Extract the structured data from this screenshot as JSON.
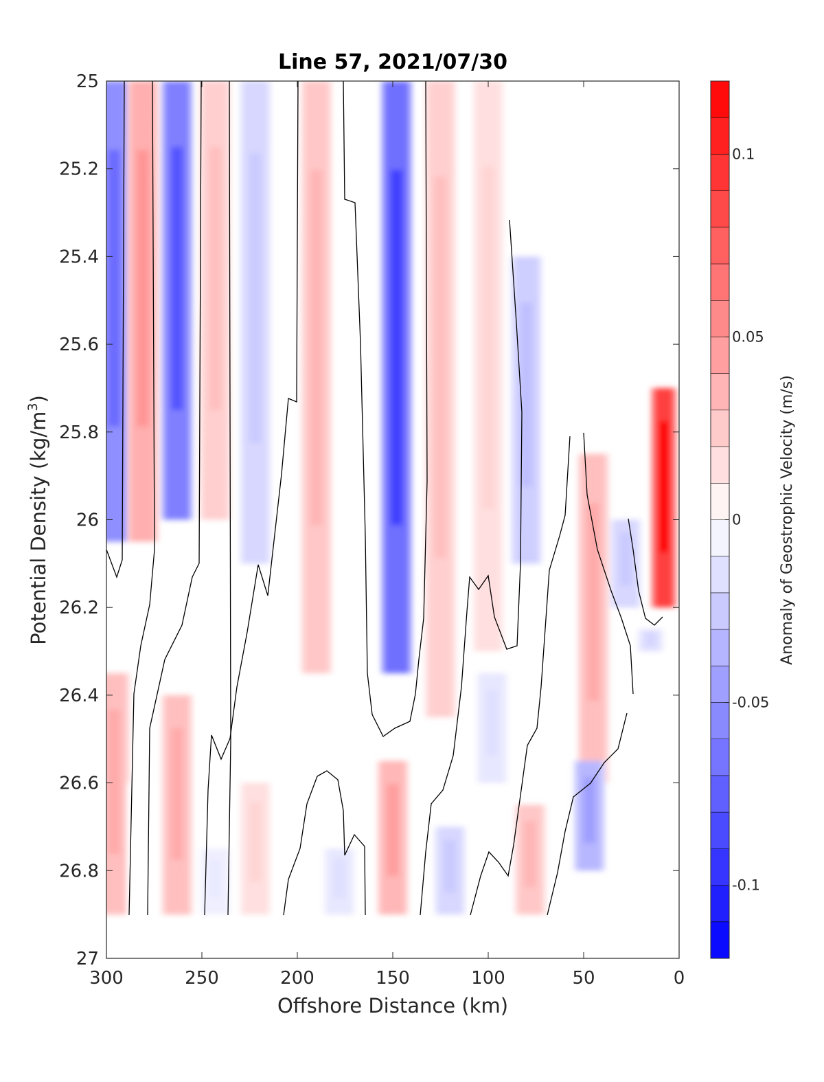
{
  "chart_data": {
    "type": "heatmap",
    "title": "Line 57, 2021/07/30",
    "xlabel": "Offshore Distance (km)",
    "ylabel_main": "Potential Density (kg/m",
    "ylabel_sup": "3",
    "ylabel_close": ")",
    "colorbar_label": "Anomaly of Geostrophic Velocity (m/s)",
    "xlim": [
      300,
      0
    ],
    "ylim": [
      25,
      27
    ],
    "x_reversed": true,
    "y_reversed": true,
    "xticks": [
      300,
      250,
      200,
      150,
      100,
      50,
      0
    ],
    "xtick_labels": [
      "300",
      "250",
      "200",
      "150",
      "100",
      "50",
      "0"
    ],
    "yticks": [
      25,
      25.2,
      25.4,
      25.6,
      25.8,
      26,
      26.2,
      26.4,
      26.6,
      26.8,
      27
    ],
    "ytick_labels": [
      "25",
      "25.2",
      "25.4",
      "25.6",
      "25.8",
      "26",
      "26.2",
      "26.4",
      "26.6",
      "26.8",
      "27"
    ],
    "clim": [
      -0.12,
      0.12
    ],
    "colorbar_ticks": [
      0.1,
      0.05,
      0,
      -0.05,
      -0.1
    ],
    "colorbar_tick_labels": [
      "0.1",
      "0.05",
      "0",
      "-0.05",
      "-0.1"
    ],
    "colormap": {
      "negative": "#0000ff",
      "zero": "#ffffff",
      "positive": "#ff0000",
      "levels": 24
    },
    "contour_level": 0,
    "contour_color": "#000000",
    "grid": false,
    "field_note": "column anomaly values (m/s) estimated from color; density range per column",
    "columns": [
      {
        "x": 296,
        "top": 25.0,
        "bottom": 26.05,
        "value": -0.07
      },
      {
        "x": 296,
        "top": 26.35,
        "bottom": 26.9,
        "value": 0.04
      },
      {
        "x": 281,
        "top": 25.0,
        "bottom": 26.05,
        "value": 0.05
      },
      {
        "x": 281,
        "top": 26.6,
        "bottom": 26.9,
        "value": 0.0
      },
      {
        "x": 263,
        "top": 25.0,
        "bottom": 26.0,
        "value": -0.08
      },
      {
        "x": 263,
        "top": 26.4,
        "bottom": 26.9,
        "value": 0.04
      },
      {
        "x": 243,
        "top": 25.0,
        "bottom": 26.0,
        "value": 0.03
      },
      {
        "x": 243,
        "top": 26.75,
        "bottom": 26.9,
        "value": -0.01
      },
      {
        "x": 222,
        "top": 25.0,
        "bottom": 26.1,
        "value": -0.025
      },
      {
        "x": 222,
        "top": 26.6,
        "bottom": 26.9,
        "value": 0.02
      },
      {
        "x": 190,
        "top": 25.0,
        "bottom": 26.35,
        "value": 0.035
      },
      {
        "x": 178,
        "top": 26.75,
        "bottom": 26.9,
        "value": -0.015
      },
      {
        "x": 148,
        "top": 25.0,
        "bottom": 26.35,
        "value": -0.09
      },
      {
        "x": 150,
        "top": 26.55,
        "bottom": 26.9,
        "value": 0.045
      },
      {
        "x": 125,
        "top": 25.0,
        "bottom": 26.45,
        "value": 0.03
      },
      {
        "x": 120,
        "top": 26.7,
        "bottom": 26.9,
        "value": -0.025
      },
      {
        "x": 100,
        "top": 25.0,
        "bottom": 26.3,
        "value": 0.02
      },
      {
        "x": 98,
        "top": 26.35,
        "bottom": 26.6,
        "value": -0.015
      },
      {
        "x": 78,
        "top": 26.65,
        "bottom": 26.9,
        "value": 0.035
      },
      {
        "x": 80,
        "top": 25.4,
        "bottom": 26.1,
        "value": -0.03
      },
      {
        "x": 45,
        "top": 25.85,
        "bottom": 26.6,
        "value": 0.04
      },
      {
        "x": 47,
        "top": 26.55,
        "bottom": 26.8,
        "value": -0.045
      },
      {
        "x": 28,
        "top": 26.0,
        "bottom": 26.2,
        "value": -0.025
      },
      {
        "x": 8,
        "top": 25.7,
        "bottom": 26.2,
        "value": 0.12
      },
      {
        "x": 15,
        "top": 26.25,
        "bottom": 26.3,
        "value": -0.02
      }
    ]
  }
}
